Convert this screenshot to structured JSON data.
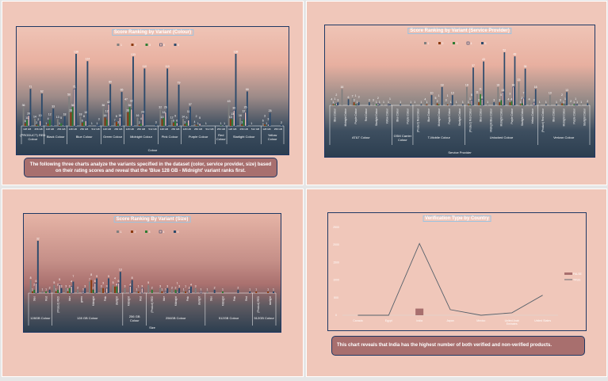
{
  "colors": {
    "r1": "#7f7f7f",
    "r2": "#8b3a0f",
    "r3": "#2e7d32",
    "r4": "#f6c3b5",
    "r5": "#2c4a6b",
    "line": "#55606a",
    "false_bar": "#a86f6e"
  },
  "legend": [
    "1",
    "2",
    "3",
    "4",
    "5"
  ],
  "chart_data": [
    {
      "type": "bar",
      "title": "Score Ranking by Variant (Colour)",
      "xlabel": "Colour",
      "series_names": [
        "1",
        "2",
        "3",
        "4",
        "5"
      ],
      "groups": [
        {
          "label": "(PRODUCT) RED Colour",
          "subs": [
            {
              "label": "128 GB",
              "values": [
                36,
                5,
                11,
                20,
                71
              ]
            },
            {
              "label": "256 GB",
              "values": [
                14,
                2,
                2,
                10,
                62
              ]
            }
          ]
        },
        {
          "label": "Black Colour",
          "subs": [
            {
              "label": "128 GB",
              "values": [
                1,
                4,
                12,
                0,
                33
              ]
            },
            {
              "label": "256 GB",
              "values": [
                13,
                1,
                5,
                0,
                18
              ]
            }
          ]
        },
        {
          "label": "Blue Colour",
          "subs": [
            {
              "label": "128 GB",
              "values": [
                56,
                26,
                36,
                71,
                138
              ]
            },
            {
              "label": "256 GB",
              "values": [
                18,
                6,
                8,
                10,
                124
              ]
            },
            {
              "label": "512 GB",
              "values": [
                1,
                0,
                0,
                1,
                3
              ]
            }
          ]
        },
        {
          "label": "Green Colour",
          "subs": [
            {
              "label": "128 GB",
              "values": [
                36,
                16,
                12,
                42,
                80
              ]
            },
            {
              "label": "256 GB",
              "values": [
                7,
                8,
                3,
                16,
                65
              ]
            }
          ]
        },
        {
          "label": "Midnight Colour",
          "subs": [
            {
              "label": "128 GB",
              "values": [
                47,
                26,
                36,
                32,
                133
              ]
            },
            {
              "label": "256 GB",
              "values": [
                16,
                2,
                4,
                23,
                110
              ]
            },
            {
              "label": "512 GB",
              "values": [
                0,
                0,
                0,
                0,
                3
              ]
            }
          ]
        },
        {
          "label": "Pink Colour",
          "subs": [
            {
              "label": "128 GB",
              "values": [
                32,
                13,
                16,
                26,
                110
              ]
            },
            {
              "label": "256 GB",
              "values": [
                12,
                6,
                9,
                6,
                79
              ]
            }
          ]
        },
        {
          "label": "Purple Colour",
          "subs": [
            {
              "label": "128 GB",
              "values": [
                14,
                3,
                6,
                11,
                37
              ]
            },
            {
              "label": "256 GB",
              "values": [
                4,
                2,
                1,
                5,
                0
              ]
            },
            {
              "label": "512 GB",
              "values": [
                1,
                0,
                0,
                0,
                0
              ]
            }
          ]
        },
        {
          "label": "Red Colour",
          "subs": [
            {
              "label": "256 GB",
              "values": [
                0,
                0,
                1,
                0,
                1
              ]
            }
          ]
        },
        {
          "label": "Starlight Colour",
          "subs": [
            {
              "label": "128 GB",
              "values": [
                43,
                13,
                13,
                30,
                138
              ]
            },
            {
              "label": "256 GB",
              "values": [
                16,
                3,
                12,
                26,
                66
              ]
            },
            {
              "label": "512 GB",
              "values": [
                1,
                0,
                0,
                0,
                0
              ]
            }
          ]
        },
        {
          "label": "Yellow Colour",
          "subs": [
            {
              "label": "128 GB",
              "values": [
                6,
                3,
                1,
                3,
                25
              ]
            },
            {
              "label": "256 GB",
              "values": [
                0,
                0,
                0,
                0,
                2
              ]
            }
          ]
        }
      ]
    },
    {
      "type": "bar",
      "title": "Score Ranking by Variant (Service Provider)",
      "xlabel": "Service Provider",
      "series_names": [
        "1",
        "2",
        "3",
        "4",
        "5"
      ],
      "groups": [
        {
          "label": "AT&T Colour",
          "subs": [
            {
              "label": "Blue Colour",
              "values": [
                4,
                1,
                1,
                2,
                3
              ]
            },
            {
              "label": "Midnight Colour",
              "values": [
                16,
                0,
                0,
                0,
                6
              ]
            },
            {
              "label": "Purple Colour",
              "values": [
                7,
                3,
                1,
                1,
                3
              ]
            },
            {
              "label": "Red Colour",
              "values": [
                0,
                0,
                0,
                0,
                3
              ]
            },
            {
              "label": "Starlight Colour",
              "values": [
                3,
                0,
                1,
                2,
                1
              ]
            },
            {
              "label": "Yellow Colour",
              "values": [
                1,
                0,
                0,
                1,
                1
              ]
            }
          ]
        },
        {
          "label": "GSM Carrier Colour",
          "subs": [
            {
              "label": "Blue Colour",
              "values": [
                0,
                0,
                0,
                0,
                1
              ]
            },
            {
              "label": "Purple Colour",
              "values": [
                0,
                0,
                0,
                0,
                1
              ]
            }
          ]
        },
        {
          "label": "T-Mobile Colour",
          "subs": [
            {
              "label": "(Product) Red Colour",
              "values": [
                1,
                0,
                0,
                0,
                1
              ]
            },
            {
              "label": "Blue Colour",
              "values": [
                4,
                1,
                0,
                0,
                10
              ]
            },
            {
              "label": "Midnight Colour",
              "values": [
                5,
                2,
                1,
                0,
                18
              ]
            },
            {
              "label": "Purple Colour",
              "values": [
                3,
                1,
                0,
                1,
                10
              ]
            },
            {
              "label": "Starlight Colour",
              "values": [
                1,
                0,
                0,
                0,
                1
              ]
            }
          ]
        },
        {
          "label": "Unlocked Colour",
          "subs": [
            {
              "label": "(Product) Red Colour",
              "values": [
                18,
                1,
                1,
                5,
                37
              ]
            },
            {
              "label": "Blue Colour",
              "values": [
                11,
                3,
                11,
                6,
                43
              ]
            },
            {
              "label": "Midnight Blue Colour",
              "values": [
                1,
                0,
                0,
                0,
                3
              ]
            },
            {
              "label": "Midnight Colour",
              "values": [
                18,
                3,
                5,
                13,
                52
              ]
            },
            {
              "label": "Purple Colour",
              "values": [
                4,
                3,
                4,
                18,
                48
              ]
            },
            {
              "label": "Starlight Colour",
              "values": [
                23,
                1,
                2,
                7,
                36
              ]
            },
            {
              "label": "Yellow Colour",
              "values": [
                4,
                0,
                0,
                3,
                16
              ]
            }
          ]
        },
        {
          "label": "Verizon Colour",
          "subs": [
            {
              "label": "(Product) Red Colour",
              "values": [
                1,
                0,
                0,
                0,
                1
              ]
            },
            {
              "label": "Blue Colour",
              "values": [
                10,
                0,
                0,
                0,
                1
              ]
            },
            {
              "label": "Midnight Colour",
              "values": [
                3,
                2,
                1,
                1,
                13
              ]
            },
            {
              "label": "Purple Colour",
              "values": [
                2,
                0,
                1,
                1,
                1
              ]
            },
            {
              "label": "Starlight Colour",
              "values": [
                1,
                0,
                0,
                0,
                2
              ]
            }
          ]
        }
      ]
    },
    {
      "type": "bar",
      "title": "Score Ranking By Variant (Size)",
      "xlabel": "Size",
      "series_names": [
        "1",
        "2",
        "3",
        "4",
        "5"
      ],
      "groups": [
        {
          "label": "128GB Colour",
          "subs": [
            {
              "label": "blue",
              "values": [
                8,
                1,
                2,
                6,
                32
              ]
            },
            {
              "label": "Red",
              "values": [
                1,
                0,
                1,
                0,
                2
              ]
            }
          ]
        },
        {
          "label": "128 GB Colour",
          "subs": [
            {
              "label": "(Product) RED",
              "values": [
                5,
                1,
                2,
                5,
                3
              ]
            },
            {
              "label": "blue",
              "values": [
                3,
                1,
                3,
                4,
                7
              ]
            },
            {
              "label": "green",
              "values": [
                2,
                0,
                0,
                1,
                3
              ]
            },
            {
              "label": "Midnight",
              "values": [
                7,
                8,
                2,
                6,
                9
              ]
            },
            {
              "label": "Pink",
              "values": [
                3,
                3,
                0,
                3,
                9
              ]
            },
            {
              "label": "starlight",
              "values": [
                5,
                4,
                4,
                6,
                13
              ]
            }
          ]
        },
        {
          "label": "256 GB Colour",
          "subs": [
            {
              "label": "Midnight",
              "values": [
                3,
                0,
                0,
                4,
                8
              ]
            },
            {
              "label": "Red",
              "values": [
                1,
                1,
                0,
                3,
                0
              ]
            }
          ]
        },
        {
          "label": "256GB Colour",
          "subs": [
            {
              "label": "(Product) RED",
              "values": [
                5,
                0,
                2,
                0,
                0
              ]
            },
            {
              "label": "blue",
              "values": [
                3,
                1,
                0,
                1,
                3
              ]
            },
            {
              "label": "Midnight",
              "values": [
                2,
                0,
                2,
                1,
                3
              ]
            },
            {
              "label": "Pink",
              "values": [
                1,
                1,
                0,
                2,
                4
              ]
            },
            {
              "label": "starlight",
              "values": [
                3,
                0,
                0,
                1,
                0
              ]
            }
          ]
        },
        {
          "label": "512GB Colour",
          "subs": [
            {
              "label": "blue",
              "values": [
                1,
                0,
                0,
                0,
                2
              ]
            },
            {
              "label": "Midnight",
              "values": [
                0,
                0,
                1,
                0,
                0
              ]
            },
            {
              "label": "Pink",
              "values": [
                0,
                0,
                0,
                0,
                2
              ]
            },
            {
              "label": "Red",
              "values": [
                0,
                0,
                0,
                0,
                1
              ]
            }
          ]
        },
        {
          "label": "512GB Colour",
          "subs": [
            {
              "label": "(Product) RED",
              "values": [
                0,
                1,
                0,
                0,
                0
              ]
            },
            {
              "label": "starlight",
              "values": [
                0,
                1,
                0,
                0,
                1
              ]
            }
          ]
        }
      ]
    },
    {
      "type": "line",
      "title": "Verification Type by Country",
      "categories": [
        "Canada",
        "Egypt",
        "India",
        "Japan",
        "Mexico",
        "United Arab Emirates",
        "United States"
      ],
      "series": [
        {
          "name": "FALSE",
          "kind": "bar",
          "values": [
            0,
            0,
            190,
            0,
            0,
            0,
            0
          ]
        },
        {
          "name": "TRUE",
          "kind": "line",
          "values": [
            0,
            0,
            2040,
            160,
            0,
            70,
            570
          ]
        }
      ],
      "yticks": [
        "0",
        "500",
        "1000",
        "1500",
        "2000",
        "2500"
      ],
      "ylim": [
        0,
        2500
      ],
      "legend_position": "right"
    }
  ],
  "notes": {
    "colour": "The following three charts analyze the variants specified in the dataset (color, service provider, size) based on their rating scores and reveal that the 'Blue 128 GB - Midnight' variant ranks first.",
    "country": "This chart reveals that India has the highest number of both verified and non-verified products."
  }
}
